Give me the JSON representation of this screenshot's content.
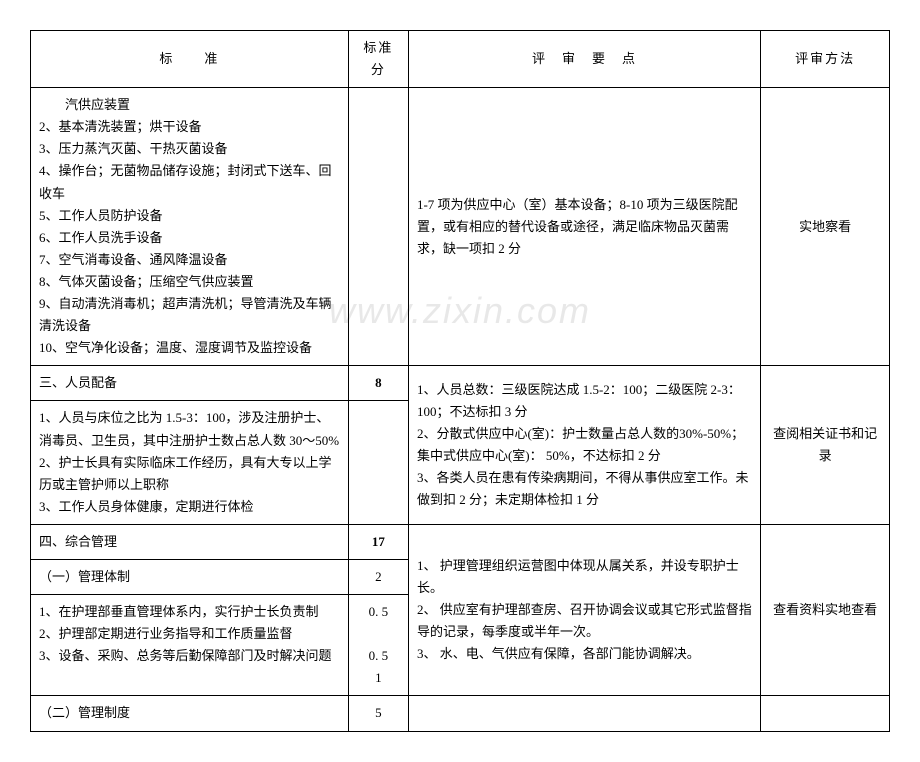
{
  "watermark": "www.zixin.com",
  "header": {
    "col1": "标　　准",
    "col2": "标准分",
    "col3": "评　审　要　点",
    "col4": "评审方法"
  },
  "rows": {
    "r1_std": "　　汽供应装置\n2、基本清洗装置；烘干设备\n3、压力蒸汽灭菌、干热灭菌设备\n4、操作台；无菌物品储存设施；封闭式下送车、回收车\n5、工作人员防护设备\n6、工作人员洗手设备\n7、空气消毒设备、通风降温设备\n8、气体灭菌设备；压缩空气供应装置\n9、自动清洗消毒机；超声清洗机；导管清洗及车辆清洗设备\n10、空气净化设备；温度、湿度调节及监控设备",
    "r1_score": "",
    "r1_points": "1-7 项为供应中心（室）基本设备；8-10 项为三级医院配置，或有相应的替代设备或途径，满足临床物品灭菌需求，缺一项扣 2 分",
    "r1_method": "实地察看",
    "r2_std_a": "三、人员配备",
    "r2_score_a": "8",
    "r2_std_b": "1、人员与床位之比为 1.5-3：100，涉及注册护士、消毒员、卫生员，其中注册护士数占总人数 30～50%\n2、护士长具有实际临床工作经历，具有大专以上学历或主管护师以上职称\n3、工作人员身体健康，定期进行体检",
    "r2_score_b": "",
    "r2_points": "1、人员总数：三级医院达成 1.5-2：100；二级医院 2-3：100；不达标扣 3 分\n2、分散式供应中心(室)：护士数量占总人数的30%-50%；集中式供应中心(室)：  50%，不达标扣 2 分\n3、各类人员在患有传染病期间，不得从事供应室工作。未做到扣 2 分；未定期体检扣 1 分",
    "r2_method": "查阅相关证书和记录",
    "r3_std": "四、综合管理",
    "r3_score": "17",
    "r3_points": "1、 护理管理组织运营图中体现从属关系，并设专职护士长。\n2、 供应室有护理部查房、召开协调会议或其它形式监督指导的记录，每季度或半年一次。\n3、 水、电、气供应有保障，各部门能协调解决。",
    "r3_method": "查看资料实地查看",
    "r4_std": "（一）管理体制",
    "r4_score": "2",
    "r5_std": "1、在护理部垂直管理体系内，实行护士长负责制\n2、护理部定期进行业务指导和工作质量监督\n3、设备、采购、总务等后勤保障部门及时解决问题",
    "r5_score": "0. 5\n\n0. 5\n1",
    "r6_std": "（二）管理制度",
    "r6_score": "5"
  }
}
